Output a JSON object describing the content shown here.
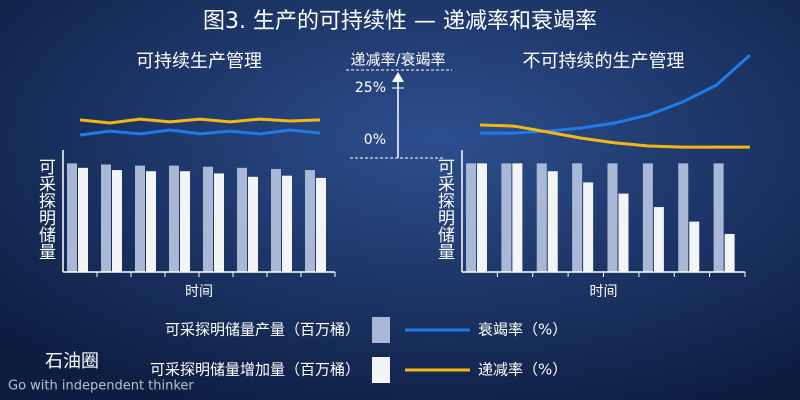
{
  "title": "图3. 生产的可持续性 — 递减率和衰竭率",
  "watermark": {
    "brand": "石油圈",
    "tagline": "Go with independent thinker"
  },
  "chart_data": [
    {
      "type": "bar",
      "title": "可持续生产管理",
      "xlabel": "时间",
      "ylabel": "可采探明储量",
      "ylim": [
        0,
        100
      ],
      "y2label": "递减率/衰竭率",
      "y2lim": [
        0,
        25
      ],
      "y2ticks": [
        {
          "value": 0,
          "label": "0%"
        },
        {
          "value": 25,
          "label": "25%"
        }
      ],
      "series": [
        {
          "name": "可采探明储量产量（百万桶）",
          "color": "#a9b8d6",
          "values": [
            97,
            96,
            95,
            95,
            94,
            93,
            92,
            91
          ]
        },
        {
          "name": "可采探明储量增加量（百万桶）",
          "color": "#f2f4f8",
          "values": [
            93,
            91,
            90,
            90,
            88,
            85,
            86,
            84
          ]
        },
        {
          "name": "衰竭率（%）",
          "type": "line",
          "axis": "y2",
          "color": "#1e7be8",
          "values": [
            8.2,
            9.6,
            8.6,
            10,
            8.6,
            9.6,
            8.6,
            10,
            8.9
          ]
        },
        {
          "name": "递减率（%）",
          "type": "line",
          "axis": "y2",
          "color": "#f2b713",
          "values": [
            13.6,
            12.5,
            13.9,
            12.9,
            13.9,
            12.9,
            13.9,
            13.2,
            13.6
          ]
        }
      ]
    },
    {
      "type": "bar",
      "title": "不可持续的生产管理",
      "xlabel": "时间",
      "ylabel": "可采探明储量",
      "ylim": [
        0,
        100
      ],
      "series": [
        {
          "color": "#a9b8d6",
          "values": [
            97,
            97,
            97,
            97,
            97,
            97,
            97,
            97
          ]
        },
        {
          "color": "#f2f4f8",
          "values": [
            97,
            97,
            90,
            80,
            70,
            58,
            45,
            34
          ]
        },
        {
          "type": "line",
          "axis": "y2",
          "color": "#1e7be8",
          "values": [
            8.9,
            8.9,
            9.6,
            10.7,
            12.5,
            15.4,
            20,
            26,
            36.8
          ]
        },
        {
          "type": "line",
          "axis": "y2",
          "color": "#f2b713",
          "values": [
            11.8,
            11.4,
            9.3,
            7.1,
            5.4,
            4.3,
            3.9,
            3.9,
            3.9
          ]
        }
      ]
    }
  ]
}
